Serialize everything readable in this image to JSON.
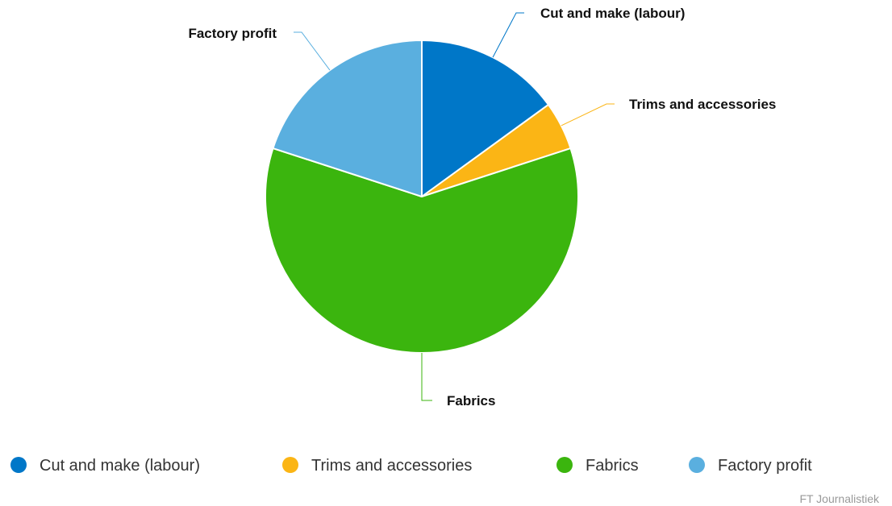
{
  "chart_data": {
    "type": "pie",
    "slices": [
      {
        "label": "Cut and make (labour)",
        "value": 15,
        "color": "#0077c8"
      },
      {
        "label": "Trims and accessories",
        "value": 5,
        "color": "#fbb515"
      },
      {
        "label": "Fabrics",
        "value": 60,
        "color": "#3bb50e"
      },
      {
        "label": "Factory profit",
        "value": 20,
        "color": "#5aafdf"
      }
    ],
    "legend_position": "bottom",
    "credit": "FT Journalistiek"
  }
}
